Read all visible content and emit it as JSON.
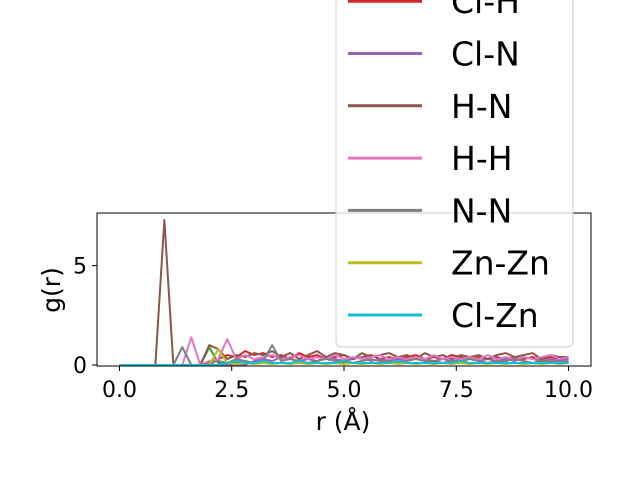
{
  "chart_data": {
    "type": "line",
    "xlabel": "r (Å)",
    "ylabel": "g(r)",
    "x": [
      0,
      0.2,
      0.4,
      0.6,
      0.8,
      1.0,
      1.2,
      1.4,
      1.6,
      1.8,
      2.0,
      2.2,
      2.4,
      2.6,
      2.8,
      3.0,
      3.2,
      3.4,
      3.6,
      3.8,
      4.0,
      4.2,
      4.4,
      4.6,
      4.8,
      5.0,
      5.2,
      5.4,
      5.6,
      5.8,
      6.0,
      6.2,
      6.4,
      6.6,
      6.8,
      7.0,
      7.2,
      7.4,
      7.6,
      7.8,
      8.0,
      8.2,
      8.4,
      8.6,
      8.8,
      9.0,
      9.2,
      9.4,
      9.6,
      9.8,
      10.0
    ],
    "series": [
      {
        "color": "#2ca02c",
        "values": [
          0,
          0,
          0,
          0,
          0,
          0,
          0,
          0,
          0,
          0,
          0.9,
          0.1,
          0.1,
          0.1,
          0.1,
          0.1,
          0.1,
          0.1,
          0.1,
          0.1,
          0.1,
          0.1,
          0.1,
          0.1,
          0.1,
          0.1,
          0.1,
          0.1,
          0.1,
          0.1,
          0.1,
          0.1,
          0.1,
          0.1,
          0.1,
          0.1,
          0.1,
          0.1,
          0.1,
          0.1,
          0.1,
          0.1,
          0.1,
          0.1,
          0.1,
          0.1,
          0.1,
          0.1,
          0.1,
          0.1,
          0.1
        ]
      },
      {
        "name": "Cl-H",
        "color": "#d62728",
        "values": [
          0,
          0,
          0,
          0,
          0,
          0,
          0,
          0,
          0,
          0,
          0,
          0.3,
          0.5,
          0.4,
          0.7,
          0.5,
          0.6,
          0.4,
          0.5,
          0.3,
          0.6,
          0.4,
          0.5,
          0.3,
          0.4,
          0.5,
          0.3,
          0.4,
          0.5,
          0.3,
          0.4,
          0.3,
          0.4,
          0.5,
          0.3,
          0.4,
          0.3,
          0.5,
          0.4,
          0.3,
          0.4,
          0.3,
          0.4,
          0.3,
          0.4,
          0.3,
          0.4,
          0.3,
          0.4,
          0.3,
          0.3
        ]
      },
      {
        "name": "Cl-N",
        "color": "#9467bd",
        "values": [
          0,
          0,
          0,
          0,
          0,
          0,
          0,
          0,
          0,
          0,
          0,
          0,
          0,
          0,
          0,
          0.2,
          0.3,
          0.2,
          0.4,
          0.3,
          0.2,
          0.3,
          0.2,
          0.4,
          0.3,
          0.2,
          0.3,
          0.4,
          0.2,
          0.3,
          0.2,
          0.3,
          0.2,
          0.4,
          0.3,
          0.2,
          0.3,
          0.2,
          0.3,
          0.4,
          0.2,
          0.3,
          0.2,
          0.3,
          0.2,
          0.4,
          0.3,
          0.2,
          0.3,
          0.2,
          0.3
        ]
      },
      {
        "name": "H-N",
        "color": "#8c564b",
        "values": [
          0,
          0,
          0,
          0,
          0,
          7.3,
          0,
          0,
          0,
          0,
          1.0,
          0.8,
          0.3,
          0.5,
          0.4,
          0.6,
          0.5,
          0.7,
          0.4,
          0.6,
          0.3,
          0.5,
          0.7,
          0.4,
          0.6,
          0.5,
          0.3,
          0.6,
          0.4,
          0.5,
          0.6,
          0.4,
          0.5,
          0.3,
          0.6,
          0.4,
          0.5,
          0.3,
          0.5,
          0.4,
          0.5,
          0.3,
          0.5,
          0.6,
          0.4,
          0.5,
          0.6,
          0.3,
          0.5,
          0.4,
          0.4
        ]
      },
      {
        "name": "H-H",
        "color": "#e377c2",
        "values": [
          0,
          0,
          0,
          0,
          0,
          0,
          0,
          0,
          1.4,
          0,
          0.2,
          0.3,
          1.3,
          0.3,
          0.5,
          0.3,
          0.4,
          0.5,
          0.3,
          0.4,
          0.5,
          0.3,
          0.4,
          0.3,
          0.5,
          0.3,
          0.4,
          0.3,
          0.4,
          0.5,
          0.3,
          0.4,
          0.3,
          0.4,
          0.3,
          0.5,
          0.3,
          0.4,
          0.3,
          0.4,
          0.3,
          0.5,
          0.3,
          0.4,
          0.3,
          0.4,
          0.3,
          0.4,
          0.5,
          0.3,
          0.4
        ]
      },
      {
        "name": "N-N",
        "color": "#7f7f7f",
        "values": [
          0,
          0,
          0,
          0,
          0,
          0,
          0,
          0.9,
          0,
          0,
          0.1,
          0.2,
          0.1,
          0.3,
          0.2,
          0.1,
          0.2,
          1.0,
          0.2,
          0.3,
          0.2,
          0.1,
          0.2,
          0.3,
          0.2,
          0.2,
          0.1,
          0.2,
          0.3,
          0.2,
          0.2,
          0.1,
          0.2,
          0.3,
          0.2,
          0.2,
          0.1,
          0.2,
          0.2,
          0.3,
          0.2,
          0.1,
          0.2,
          0.2,
          0.3,
          0.2,
          0.1,
          0.2,
          0.2,
          0.1,
          0.2
        ]
      },
      {
        "name": "Zn-Zn",
        "color": "#bcbd22",
        "values": [
          0,
          0,
          0,
          0,
          0,
          0,
          0,
          0,
          0,
          0,
          0,
          0.8,
          0.1,
          0.05,
          0.1,
          0.05,
          0.1,
          0.05,
          0.1,
          0.05,
          0.1,
          0.05,
          0.1,
          0.05,
          0.1,
          0.05,
          0.1,
          0.05,
          0.1,
          0.05,
          0.1,
          0.05,
          0.1,
          0.05,
          0.1,
          0.05,
          0.1,
          0.05,
          0.1,
          0.05,
          0.1,
          0.05,
          0.1,
          0.05,
          0.1,
          0.05,
          0.1,
          0.05,
          0.1,
          0.05,
          0.1
        ]
      },
      {
        "name": "Cl-Zn",
        "color": "#17becf",
        "values": [
          0,
          0,
          0,
          0,
          0,
          0,
          0,
          0,
          0,
          0,
          0,
          0,
          0.1,
          0.2,
          0.1,
          0.1,
          0.2,
          0.1,
          0.1,
          0.1,
          0.2,
          0.1,
          0.1,
          0.1,
          0.1,
          0.2,
          0.1,
          0.1,
          0.1,
          0.1,
          0.1,
          0.2,
          0.1,
          0.1,
          0.1,
          0.1,
          0.1,
          0.1,
          0.2,
          0.1,
          0.1,
          0.1,
          0.1,
          0.1,
          0.1,
          0.1,
          0.1,
          0.1,
          0.1,
          0.1,
          0.1
        ]
      }
    ],
    "xlim": [
      -0.5,
      10.5
    ],
    "ylim": [
      -0.05,
      7.65
    ],
    "xticks": [
      {
        "value": 0,
        "label": "0.0"
      },
      {
        "value": 2.5,
        "label": "2.5"
      },
      {
        "value": 5,
        "label": "5.0"
      },
      {
        "value": 7.5,
        "label": "7.5"
      },
      {
        "value": 10,
        "label": "10.0"
      }
    ],
    "yticks": [
      0,
      5
    ],
    "grid": false,
    "legend": true
  }
}
